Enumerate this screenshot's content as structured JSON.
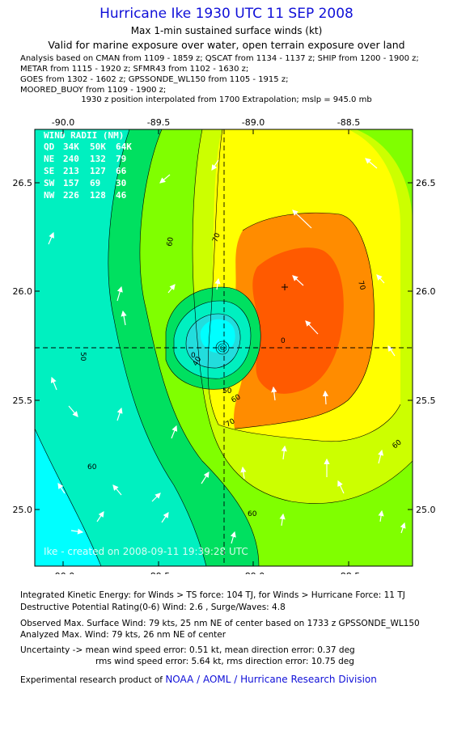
{
  "header": {
    "title": "Hurricane Ike 1930 UTC 11 SEP 2008",
    "subtitle": "Max 1-min sustained surface winds (kt)",
    "valid_for": "Valid for marine exposure over water, open terrain exposure over land"
  },
  "analysis_lines": [
    "Analysis based on  CMAN from 1109 - 1859 z;  QSCAT from 1134 - 1137 z;  SHIP from 1200 - 1900 z;",
    "METAR from 1115 - 1920 z;  SFMR43 from 1102 - 1630 z;",
    "GOES from 1302 - 1602 z;  GPSSONDE_WL150 from 1105 - 1915 z;",
    "MOORED_BUOY from 1109 - 1900 z;"
  ],
  "position_note": "1930 z position interpolated from 1700 Extrapolation; mslp = 945.0 mb",
  "map": {
    "x_ticks": [
      "-90.0",
      "-89.5",
      "-89.0",
      "-88.5"
    ],
    "y_ticks": [
      "26.5",
      "26.0",
      "25.5",
      "25.0"
    ],
    "wind_radii": {
      "title": "WIND RADII (NM)",
      "header": [
        "QD",
        "34K",
        "50K",
        "64K"
      ],
      "rows": [
        [
          "NE",
          "240",
          "132",
          "79"
        ],
        [
          "SE",
          "213",
          "127",
          "66"
        ],
        [
          "SW",
          "157",
          "69",
          "30"
        ],
        [
          "NW",
          "226",
          "128",
          "46"
        ]
      ]
    },
    "contour_labels": [
      "60",
      "70",
      "70",
      "50",
      "60",
      "60",
      "60",
      "60",
      "50",
      "0",
      "40",
      "0",
      "70"
    ],
    "created_stamp": "Ike - created on 2008-09-11 19:39:28 UTC",
    "colors": {
      "c40": "#00f0c0",
      "c50": "#00e060",
      "c60": "#80ff00",
      "c64": "#ccff00",
      "c70": "#ffff00",
      "c80": "#ff8c00",
      "c90": "#ff5a00",
      "c20": "#00ffff",
      "cent": "#22dddd"
    }
  },
  "footer": {
    "ike_line": "Integrated Kinetic Energy:  for Winds > TS force: 104 TJ,  for Winds > Hurricane Force: 11 TJ",
    "dpr_line": "Destructive Potential Rating(0-6)   Wind: 2.6 , Surge/Waves: 4.8",
    "obs_line": "Observed Max. Surface Wind: 79 kts, 25 nm NE of center based on 1733 z GPSSONDE_WL150",
    "analyzed_line": "Analyzed Max. Wind: 79 kts, 26 nm NE of center",
    "unc_line1": "Uncertainty -> mean wind speed error: 0.51 kt,   mean direction error: 0.37 deg",
    "unc_line2": "rms wind speed error: 5.64 kt,   rms direction error: 10.75 deg",
    "credit_prefix": "Experimental research product of ",
    "credit_link": "NOAA / AOML / Hurricane Research Division"
  }
}
